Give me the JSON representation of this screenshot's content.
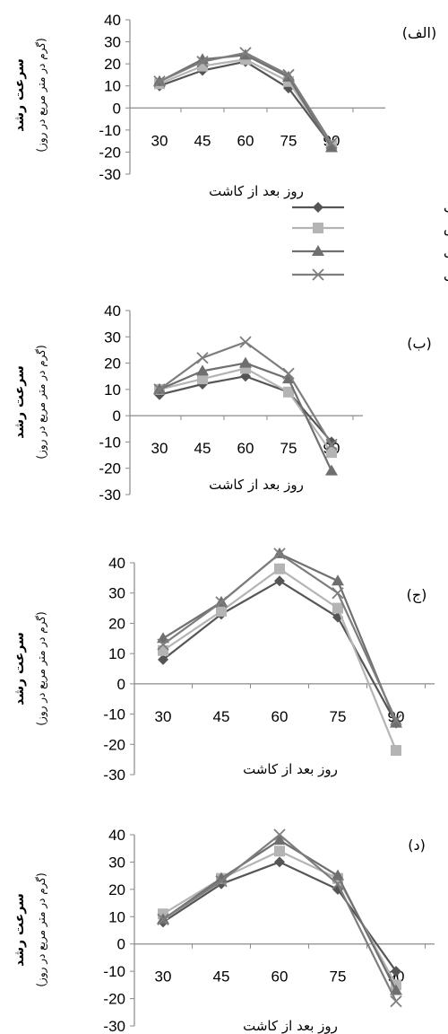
{
  "legend": {
    "entries": [
      {
        "series": 0,
        "label": "عدم مصرف"
      },
      {
        "series": 1,
        "label": "پخش"
      },
      {
        "series": 2,
        "label": "نواری"
      },
      {
        "series": 3,
        "label": "محلولپاشی"
      }
    ]
  },
  "styles": {
    "series_colors": [
      "#555555",
      "#b4b4b4",
      "#6f6f6f",
      "#7d7d7d"
    ],
    "series_markers": [
      "diamond",
      "square",
      "triangle",
      "x"
    ]
  },
  "chart_data": [
    {
      "type": "line",
      "panel_label": "(الف)",
      "ylabel": "سرعت رشد",
      "ylabel_unit": "(گرم در متر مربع در روز)",
      "xlabel": "روز بعد از کاشت",
      "categories": [
        "30",
        "45",
        "60",
        "75",
        "90"
      ],
      "yticks": [
        "40",
        "30",
        "20",
        "10",
        "0",
        "-10",
        "-20",
        "-30"
      ],
      "ylim": [
        -30,
        40
      ],
      "grid": false,
      "legend": "right-below",
      "series": [
        {
          "values": [
            10,
            17,
            21,
            9,
            -17
          ]
        },
        {
          "values": [
            11,
            19,
            22,
            12,
            -17
          ]
        },
        {
          "values": [
            12,
            22,
            24,
            14,
            -18
          ]
        },
        {
          "values": [
            12,
            21,
            25,
            15,
            -16
          ]
        }
      ]
    },
    {
      "type": "line",
      "panel_label": "(ب)",
      "ylabel": "سرعت رشد",
      "ylabel_unit": "(گرم در متر مربع در روز)",
      "xlabel": "روز بعد از کاشت",
      "categories": [
        "30",
        "45",
        "60",
        "75",
        "90"
      ],
      "yticks": [
        "40",
        "30",
        "20",
        "10",
        "0",
        "-10",
        "-20",
        "-30"
      ],
      "ylim": [
        -30,
        40
      ],
      "grid": false,
      "series": [
        {
          "values": [
            8,
            12,
            15,
            9,
            -10
          ]
        },
        {
          "values": [
            10,
            14,
            18,
            9,
            -14
          ]
        },
        {
          "values": [
            10,
            17,
            20,
            14,
            -21
          ]
        },
        {
          "values": [
            10,
            22,
            28,
            16,
            -11
          ]
        }
      ]
    },
    {
      "type": "line",
      "panel_label": "(ج)",
      "ylabel": "سرعت رشد",
      "ylabel_unit": "(گرم در متر مربع در روز)",
      "xlabel": "روز بعد از کاشت",
      "categories": [
        "30",
        "45",
        "60",
        "75",
        "90"
      ],
      "yticks": [
        "40",
        "30",
        "20",
        "10",
        "0",
        "-10",
        "-20",
        "-30"
      ],
      "ylim": [
        -30,
        40
      ],
      "grid": false,
      "series": [
        {
          "values": [
            8,
            23,
            34,
            22,
            -13
          ]
        },
        {
          "values": [
            11,
            24,
            38,
            25,
            -22
          ]
        },
        {
          "values": [
            15,
            27,
            43,
            34,
            -13
          ]
        },
        {
          "values": [
            13,
            27,
            43,
            30,
            -12
          ]
        }
      ]
    },
    {
      "type": "line",
      "panel_label": "(د)",
      "ylabel": "سرعت رشد",
      "ylabel_unit": "(گرم در متر مربع در روز)",
      "xlabel": "روز بعد از کاشت",
      "categories": [
        "30",
        "45",
        "60",
        "75",
        "90"
      ],
      "yticks": [
        "40",
        "30",
        "20",
        "10",
        "0",
        "-10",
        "-20",
        "-30"
      ],
      "ylim": [
        -30,
        40
      ],
      "grid": false,
      "series": [
        {
          "values": [
            8,
            22,
            30,
            20,
            -10
          ]
        },
        {
          "values": [
            11,
            24,
            34,
            24,
            -15
          ]
        },
        {
          "values": [
            9,
            24,
            38,
            25,
            -17
          ]
        },
        {
          "values": [
            9,
            23,
            40,
            22,
            -21
          ]
        }
      ]
    }
  ]
}
